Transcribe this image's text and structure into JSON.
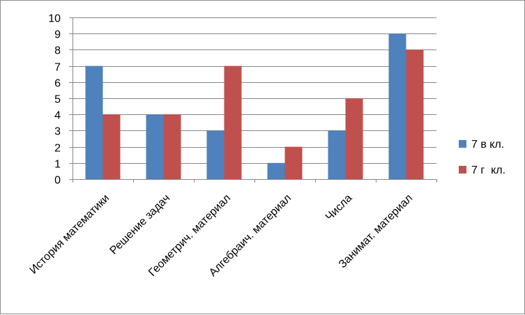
{
  "chart_data": {
    "type": "bar",
    "categories": [
      "История математики",
      "Решение задач",
      "Геометрич. материал",
      "Алгебраич. материал",
      "Числа",
      "Занимат. материал"
    ],
    "series": [
      {
        "name": "7 в кл.",
        "color": "#4F81BD",
        "values": [
          7,
          4,
          3,
          1,
          3,
          9
        ]
      },
      {
        "name": "7 г  кл.",
        "color": "#C0504D",
        "values": [
          4,
          4,
          7,
          2,
          5,
          8
        ]
      }
    ],
    "ylim": [
      0,
      10
    ],
    "yticks": [
      0,
      1,
      2,
      3,
      4,
      5,
      6,
      7,
      8,
      9,
      10
    ],
    "grid": true,
    "legend": "right"
  }
}
